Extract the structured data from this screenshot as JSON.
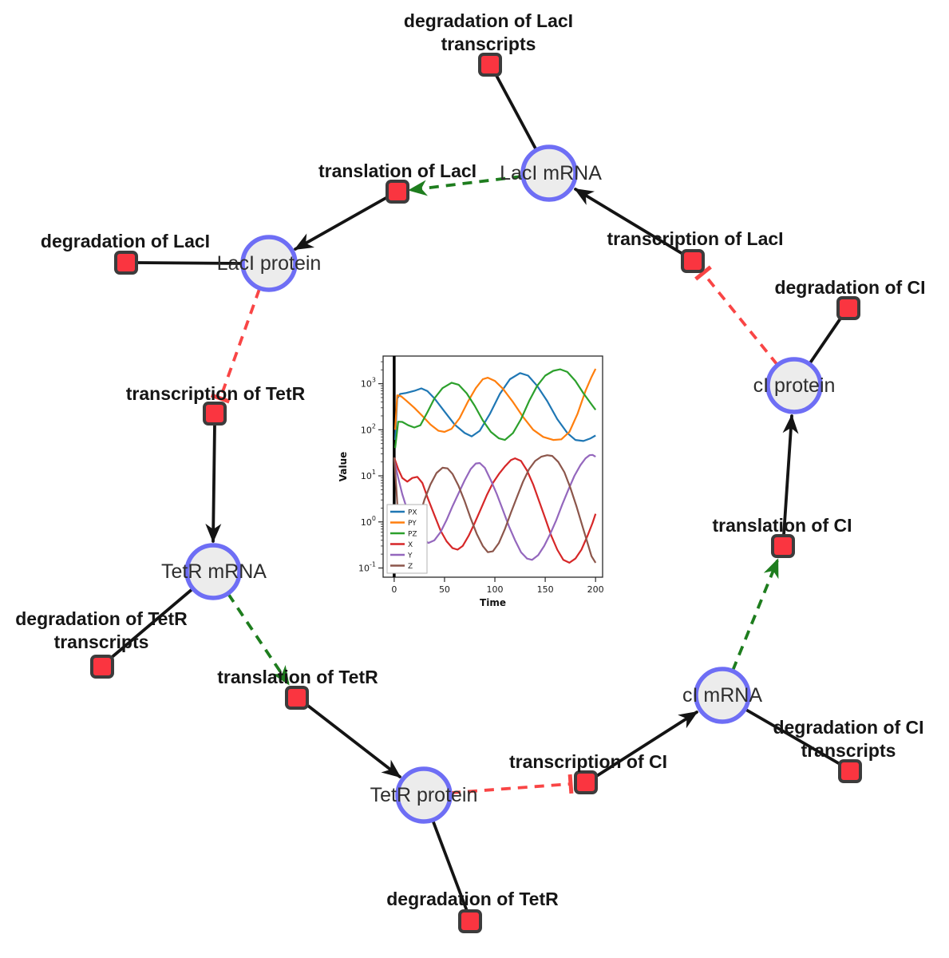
{
  "diagram": {
    "colors": {
      "species_fill": "#ececec",
      "species_border": "#6e6ef5",
      "reaction_fill": "#fa3540",
      "reaction_border": "#3c3c3c",
      "edge_black": "#141414",
      "modifier_green": "#1e7d1e",
      "inhibition_red": "#f94545"
    },
    "species": [
      {
        "id": "laci-mrna",
        "label": "LacI mRNA"
      },
      {
        "id": "laci-protein",
        "label": "LacI protein"
      },
      {
        "id": "tetr-mrna",
        "label": "TetR mRNA"
      },
      {
        "id": "tetr-protein",
        "label": "TetR protein"
      },
      {
        "id": "ci-mrna",
        "label": "cI mRNA"
      },
      {
        "id": "ci-protein",
        "label": "cI protein"
      }
    ],
    "reactions": [
      {
        "id": "degradation-laci-transcripts",
        "label_lines": [
          "degradation of LacI",
          "transcripts"
        ]
      },
      {
        "id": "translation-laci",
        "label_lines": [
          "translation of LacI"
        ]
      },
      {
        "id": "transcription-laci",
        "label_lines": [
          "transcription of LacI"
        ]
      },
      {
        "id": "degradation-laci",
        "label_lines": [
          "degradation of LacI"
        ]
      },
      {
        "id": "transcription-tetr",
        "label_lines": [
          "transcription of TetR"
        ]
      },
      {
        "id": "degradation-tetr-transcripts",
        "label_lines": [
          "degradation of TetR",
          "transcripts"
        ]
      },
      {
        "id": "translation-tetr",
        "label_lines": [
          "translation of TetR"
        ]
      },
      {
        "id": "degradation-tetr",
        "label_lines": [
          "degradation of TetR"
        ]
      },
      {
        "id": "transcription-ci",
        "label_lines": [
          "transcription of CI"
        ]
      },
      {
        "id": "degradation-ci-transcripts",
        "label_lines": [
          "degradation of CI",
          "transcripts"
        ]
      },
      {
        "id": "translation-ci",
        "label_lines": [
          "translation of CI"
        ]
      },
      {
        "id": "degradation-ci",
        "label_lines": [
          "degradation of CI"
        ]
      }
    ]
  },
  "chart_data": {
    "type": "line",
    "title": "",
    "xlabel": "Time",
    "ylabel": "Value",
    "xlim": [
      -11,
      207
    ],
    "xticks": [
      0,
      50,
      100,
      150,
      200
    ],
    "yscale": "log",
    "ytick_exponents": [
      -1,
      0,
      1,
      2,
      3
    ],
    "ylim_log": [
      -1.2,
      3.6
    ],
    "vline_x": 0,
    "legend_position": "lower-left",
    "series": [
      {
        "name": "PX",
        "color": "#1f77b4",
        "points": [
          [
            1,
            60
          ],
          [
            3,
            480
          ],
          [
            6,
            600
          ],
          [
            12,
            630
          ],
          [
            20,
            700
          ],
          [
            27,
            790
          ],
          [
            33,
            690
          ],
          [
            40,
            480
          ],
          [
            50,
            250
          ],
          [
            60,
            130
          ],
          [
            70,
            85
          ],
          [
            77,
            72
          ],
          [
            85,
            95
          ],
          [
            95,
            220
          ],
          [
            105,
            600
          ],
          [
            115,
            1250
          ],
          [
            125,
            1700
          ],
          [
            133,
            1500
          ],
          [
            142,
            900
          ],
          [
            152,
            420
          ],
          [
            162,
            170
          ],
          [
            172,
            85
          ],
          [
            180,
            60
          ],
          [
            188,
            57
          ],
          [
            195,
            65
          ],
          [
            200,
            75
          ]
        ]
      },
      {
        "name": "PY",
        "color": "#ff7f0e",
        "points": [
          [
            1,
            100
          ],
          [
            3,
            560
          ],
          [
            7,
            530
          ],
          [
            12,
            430
          ],
          [
            20,
            300
          ],
          [
            28,
            200
          ],
          [
            36,
            130
          ],
          [
            44,
            95
          ],
          [
            50,
            90
          ],
          [
            57,
            105
          ],
          [
            65,
            180
          ],
          [
            73,
            400
          ],
          [
            81,
            800
          ],
          [
            88,
            1250
          ],
          [
            93,
            1350
          ],
          [
            100,
            1150
          ],
          [
            108,
            780
          ],
          [
            118,
            400
          ],
          [
            128,
            190
          ],
          [
            138,
            100
          ],
          [
            148,
            70
          ],
          [
            158,
            60
          ],
          [
            166,
            62
          ],
          [
            174,
            90
          ],
          [
            182,
            220
          ],
          [
            190,
            700
          ],
          [
            196,
            1400
          ],
          [
            200,
            2100
          ]
        ]
      },
      {
        "name": "PZ",
        "color": "#2ca02c",
        "points": [
          [
            1,
            40
          ],
          [
            4,
            150
          ],
          [
            8,
            148
          ],
          [
            14,
            125
          ],
          [
            20,
            112
          ],
          [
            26,
            125
          ],
          [
            33,
            240
          ],
          [
            40,
            480
          ],
          [
            48,
            800
          ],
          [
            57,
            1050
          ],
          [
            64,
            950
          ],
          [
            72,
            620
          ],
          [
            80,
            330
          ],
          [
            88,
            160
          ],
          [
            96,
            90
          ],
          [
            104,
            65
          ],
          [
            110,
            60
          ],
          [
            118,
            85
          ],
          [
            126,
            170
          ],
          [
            134,
            420
          ],
          [
            142,
            900
          ],
          [
            150,
            1500
          ],
          [
            158,
            1900
          ],
          [
            165,
            2050
          ],
          [
            172,
            1800
          ],
          [
            180,
            1150
          ],
          [
            188,
            620
          ],
          [
            195,
            380
          ],
          [
            200,
            270
          ]
        ]
      },
      {
        "name": "X",
        "color": "#d62728",
        "points": [
          [
            0,
            25
          ],
          [
            4,
            14
          ],
          [
            8,
            9
          ],
          [
            13,
            7.5
          ],
          [
            18,
            9
          ],
          [
            23,
            9.5
          ],
          [
            28,
            7
          ],
          [
            34,
            3
          ],
          [
            40,
            1.4
          ],
          [
            46,
            0.65
          ],
          [
            52,
            0.38
          ],
          [
            58,
            0.27
          ],
          [
            63,
            0.25
          ],
          [
            68,
            0.3
          ],
          [
            74,
            0.5
          ],
          [
            80,
            0.95
          ],
          [
            86,
            1.9
          ],
          [
            92,
            3.8
          ],
          [
            98,
            7
          ],
          [
            104,
            11
          ],
          [
            110,
            16
          ],
          [
            116,
            22
          ],
          [
            120,
            24
          ],
          [
            126,
            21
          ],
          [
            132,
            13
          ],
          [
            138,
            6.5
          ],
          [
            144,
            2.8
          ],
          [
            150,
            1.2
          ],
          [
            156,
            0.5
          ],
          [
            162,
            0.25
          ],
          [
            168,
            0.15
          ],
          [
            174,
            0.13
          ],
          [
            180,
            0.16
          ],
          [
            186,
            0.25
          ],
          [
            192,
            0.5
          ],
          [
            197,
            0.95
          ],
          [
            200,
            1.5
          ]
        ]
      },
      {
        "name": "Y",
        "color": "#9467bd",
        "points": [
          [
            0,
            22
          ],
          [
            4,
            9
          ],
          [
            8,
            4
          ],
          [
            13,
            1.8
          ],
          [
            18,
            1.0
          ],
          [
            24,
            0.6
          ],
          [
            30,
            0.4
          ],
          [
            34,
            0.35
          ],
          [
            40,
            0.4
          ],
          [
            46,
            0.6
          ],
          [
            52,
            1.1
          ],
          [
            58,
            2.2
          ],
          [
            64,
            4.2
          ],
          [
            70,
            8
          ],
          [
            76,
            14
          ],
          [
            81,
            18.5
          ],
          [
            85,
            19
          ],
          [
            90,
            15
          ],
          [
            96,
            8
          ],
          [
            102,
            4
          ],
          [
            108,
            1.8
          ],
          [
            114,
            0.8
          ],
          [
            120,
            0.4
          ],
          [
            126,
            0.22
          ],
          [
            132,
            0.16
          ],
          [
            137,
            0.15
          ],
          [
            143,
            0.19
          ],
          [
            149,
            0.3
          ],
          [
            155,
            0.55
          ],
          [
            161,
            1.1
          ],
          [
            167,
            2.4
          ],
          [
            173,
            5
          ],
          [
            179,
            10
          ],
          [
            185,
            17
          ],
          [
            190,
            24
          ],
          [
            194,
            28
          ],
          [
            197,
            28.5
          ],
          [
            200,
            26
          ]
        ]
      },
      {
        "name": "Z",
        "color": "#8c564b",
        "points": [
          [
            0,
            25
          ],
          [
            2,
            6
          ],
          [
            4,
            1.2
          ],
          [
            6,
            0.35
          ],
          [
            8,
            0.13
          ],
          [
            10,
            0.09
          ],
          [
            13,
            0.12
          ],
          [
            16,
            0.25
          ],
          [
            20,
            0.55
          ],
          [
            25,
            1.3
          ],
          [
            30,
            3
          ],
          [
            36,
            6.5
          ],
          [
            42,
            11.5
          ],
          [
            48,
            15
          ],
          [
            53,
            14.5
          ],
          [
            58,
            11
          ],
          [
            64,
            6
          ],
          [
            70,
            2.8
          ],
          [
            76,
            1.2
          ],
          [
            82,
            0.55
          ],
          [
            88,
            0.3
          ],
          [
            93,
            0.22
          ],
          [
            98,
            0.23
          ],
          [
            104,
            0.35
          ],
          [
            110,
            0.7
          ],
          [
            116,
            1.6
          ],
          [
            122,
            3.5
          ],
          [
            128,
            7.5
          ],
          [
            134,
            14
          ],
          [
            140,
            21
          ],
          [
            146,
            26
          ],
          [
            152,
            28
          ],
          [
            157,
            27
          ],
          [
            163,
            20
          ],
          [
            169,
            12
          ],
          [
            175,
            5.5
          ],
          [
            181,
            2.2
          ],
          [
            187,
            0.8
          ],
          [
            192,
            0.35
          ],
          [
            196,
            0.18
          ],
          [
            200,
            0.13
          ]
        ]
      }
    ]
  }
}
